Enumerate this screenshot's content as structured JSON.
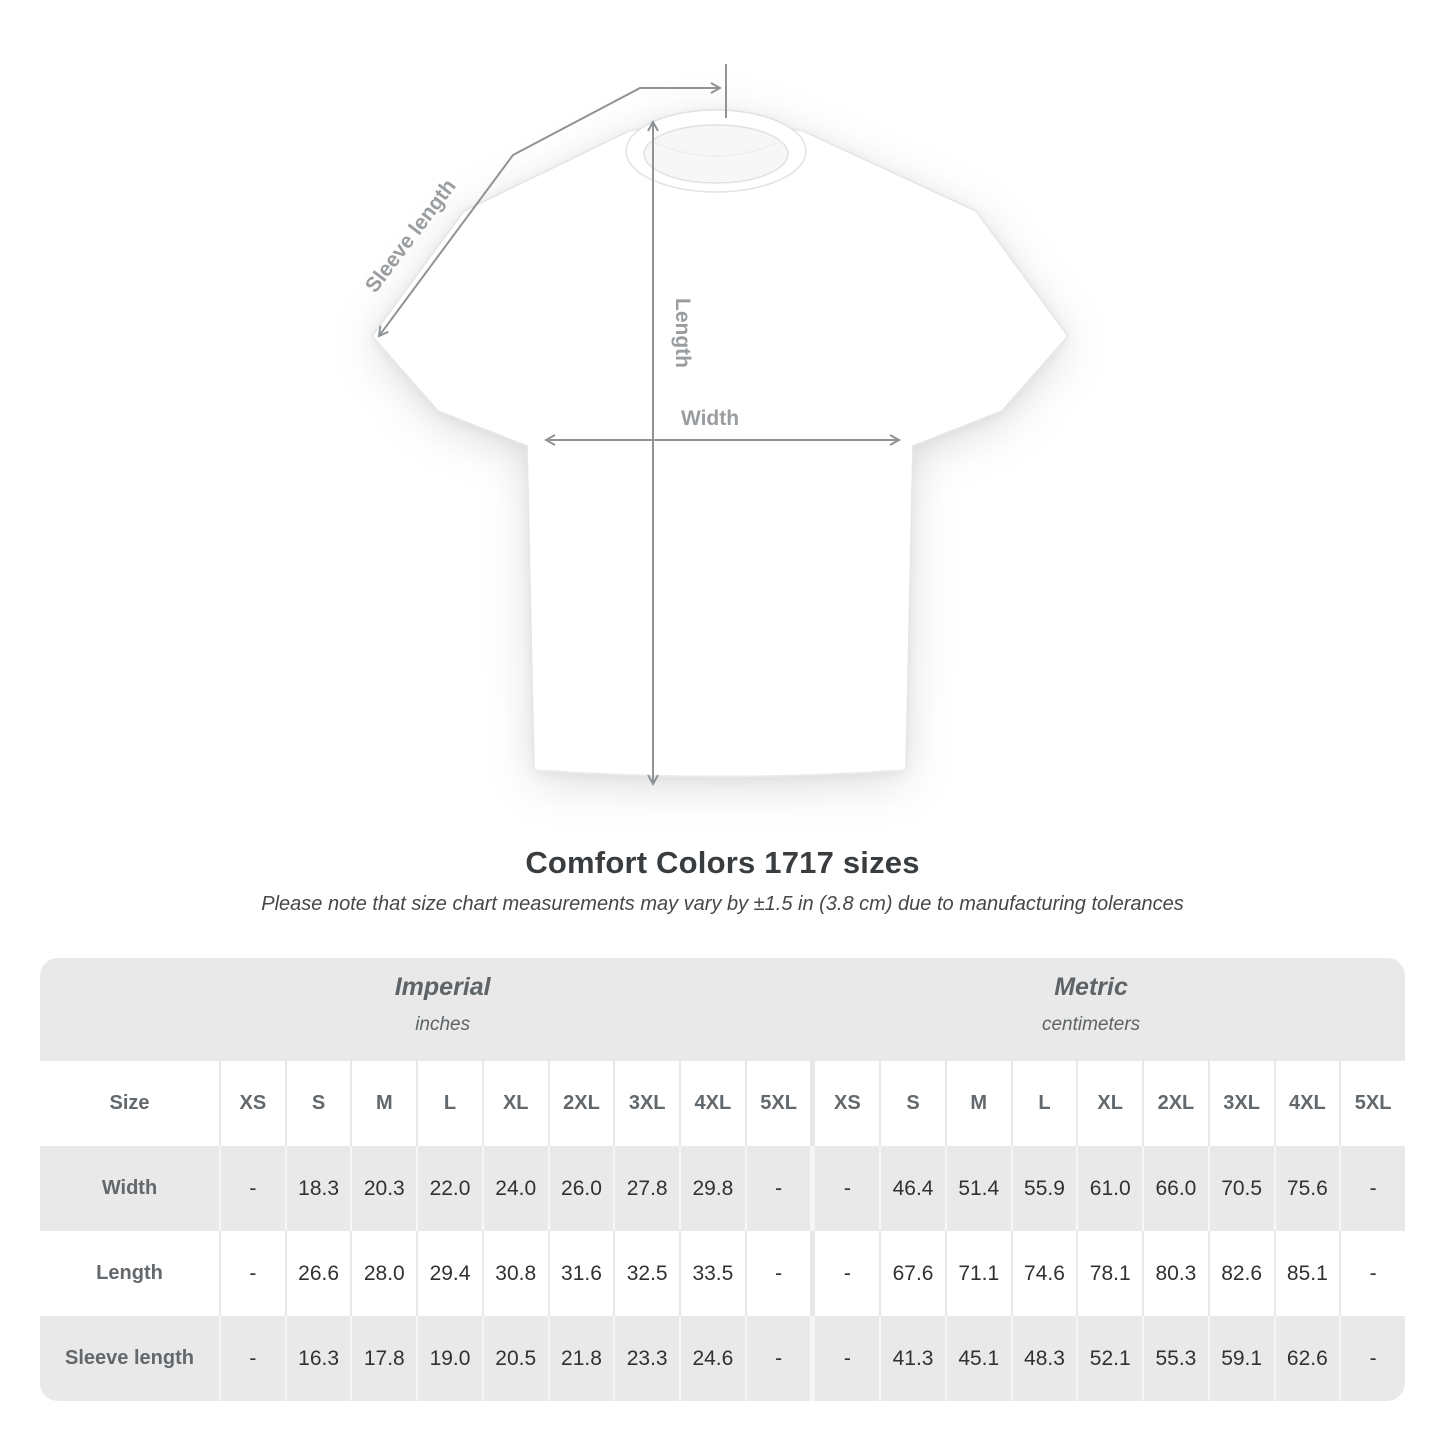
{
  "diagram": {
    "sleeve_label": "Sleeve length",
    "length_label": "Length",
    "width_label": "Width"
  },
  "chart_data": {
    "type": "table",
    "title": "Comfort Colors 1717 sizes",
    "subtitle": "Please note that size chart measurements may vary by ±1.5 in (3.8 cm) due to manufacturing tolerances",
    "column_groups": [
      {
        "label": "Imperial",
        "unit": "inches"
      },
      {
        "label": "Metric",
        "unit": "centimeters"
      }
    ],
    "corner_label": "Size",
    "sizes": [
      "XS",
      "S",
      "M",
      "L",
      "XL",
      "2XL",
      "3XL",
      "4XL",
      "5XL"
    ],
    "rows": [
      {
        "label": "Width",
        "imperial": [
          "-",
          "18.3",
          "20.3",
          "22.0",
          "24.0",
          "26.0",
          "27.8",
          "29.8",
          "-"
        ],
        "metric": [
          "-",
          "46.4",
          "51.4",
          "55.9",
          "61.0",
          "66.0",
          "70.5",
          "75.6",
          "-"
        ]
      },
      {
        "label": "Length",
        "imperial": [
          "-",
          "26.6",
          "28.0",
          "29.4",
          "30.8",
          "31.6",
          "32.5",
          "33.5",
          "-"
        ],
        "metric": [
          "-",
          "67.6",
          "71.1",
          "74.6",
          "78.1",
          "80.3",
          "82.6",
          "85.1",
          "-"
        ]
      },
      {
        "label": "Sleeve length",
        "imperial": [
          "-",
          "16.3",
          "17.8",
          "19.0",
          "20.5",
          "21.8",
          "23.3",
          "24.6",
          "-"
        ],
        "metric": [
          "-",
          "41.3",
          "45.1",
          "48.3",
          "52.1",
          "55.3",
          "59.1",
          "62.6",
          "-"
        ]
      }
    ]
  },
  "colors": {
    "band_gray": "#e9e9e9",
    "arrow_gray": "#8f9396",
    "diagram_label_gray": "#9a9da0",
    "header_text": "#63686c",
    "value_text": "#2f3234"
  }
}
